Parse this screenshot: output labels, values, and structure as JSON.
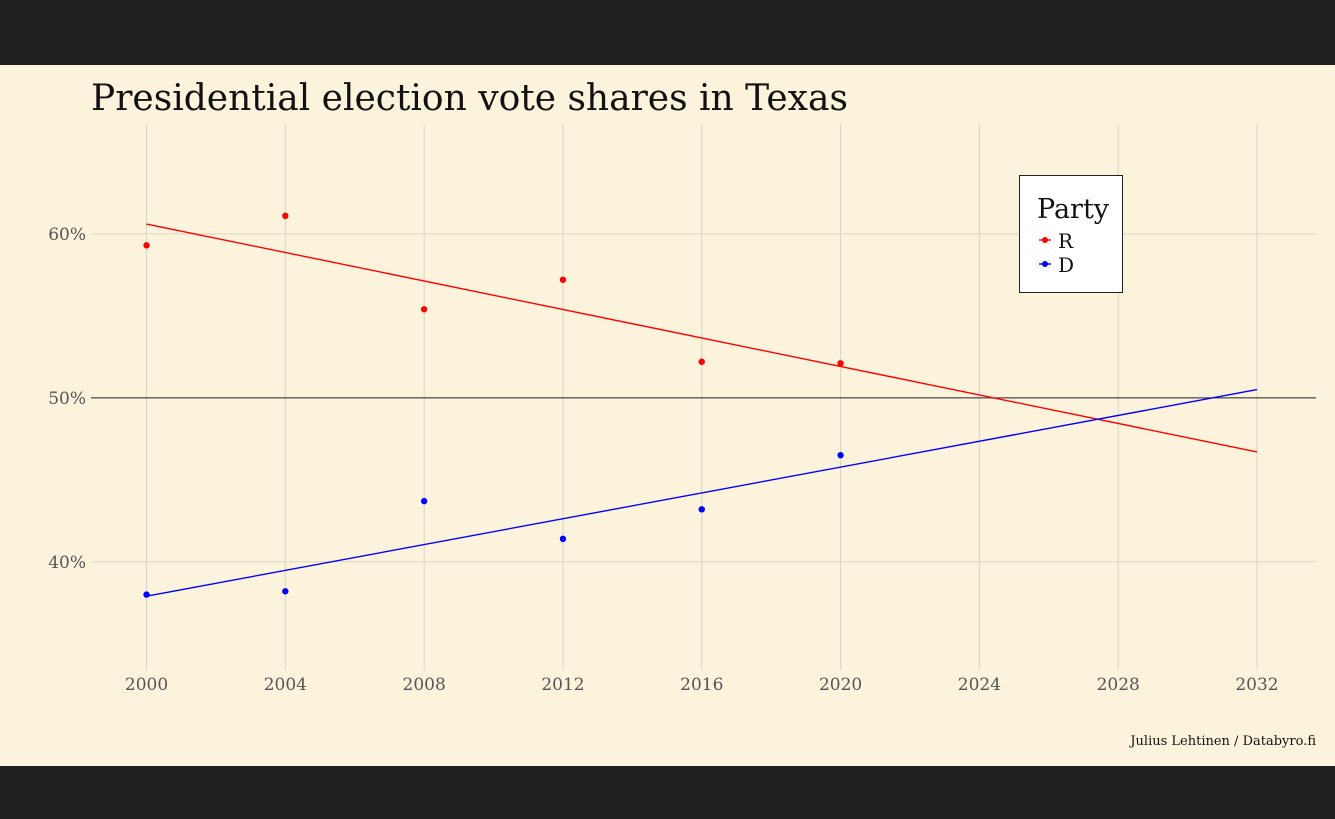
{
  "chart_data": {
    "type": "scatter",
    "title": "Presidential election vote shares in Texas",
    "xlabel": "",
    "ylabel": "",
    "x_ticks": [
      "2000",
      "2004",
      "2008",
      "2012",
      "2016",
      "2020",
      "2024",
      "2028",
      "2032"
    ],
    "y_ticks": [
      "40%",
      "50%",
      "60%"
    ],
    "xlim": [
      1998.4,
      2033.7
    ],
    "ylim": [
      33.4,
      66.7
    ],
    "reference_line": 50,
    "grid": true,
    "legend": {
      "title": "Party",
      "position": "top-right"
    },
    "series": [
      {
        "name": "R",
        "color": "#ff0000",
        "x": [
          2000,
          2004,
          2008,
          2012,
          2016,
          2020
        ],
        "values": [
          59.3,
          61.1,
          55.4,
          57.2,
          52.2,
          52.1
        ],
        "trend": {
          "x": [
            2000,
            2032
          ],
          "values": [
            60.6,
            46.7
          ]
        }
      },
      {
        "name": "D",
        "color": "#0000ff",
        "x": [
          2000,
          2004,
          2008,
          2012,
          2016,
          2020
        ],
        "values": [
          38.0,
          38.2,
          43.7,
          41.4,
          43.2,
          46.5
        ],
        "trend": {
          "x": [
            2000,
            2032
          ],
          "values": [
            37.9,
            50.5
          ]
        }
      }
    ]
  },
  "caption": "Julius Lehtinen / Databyro.fi"
}
